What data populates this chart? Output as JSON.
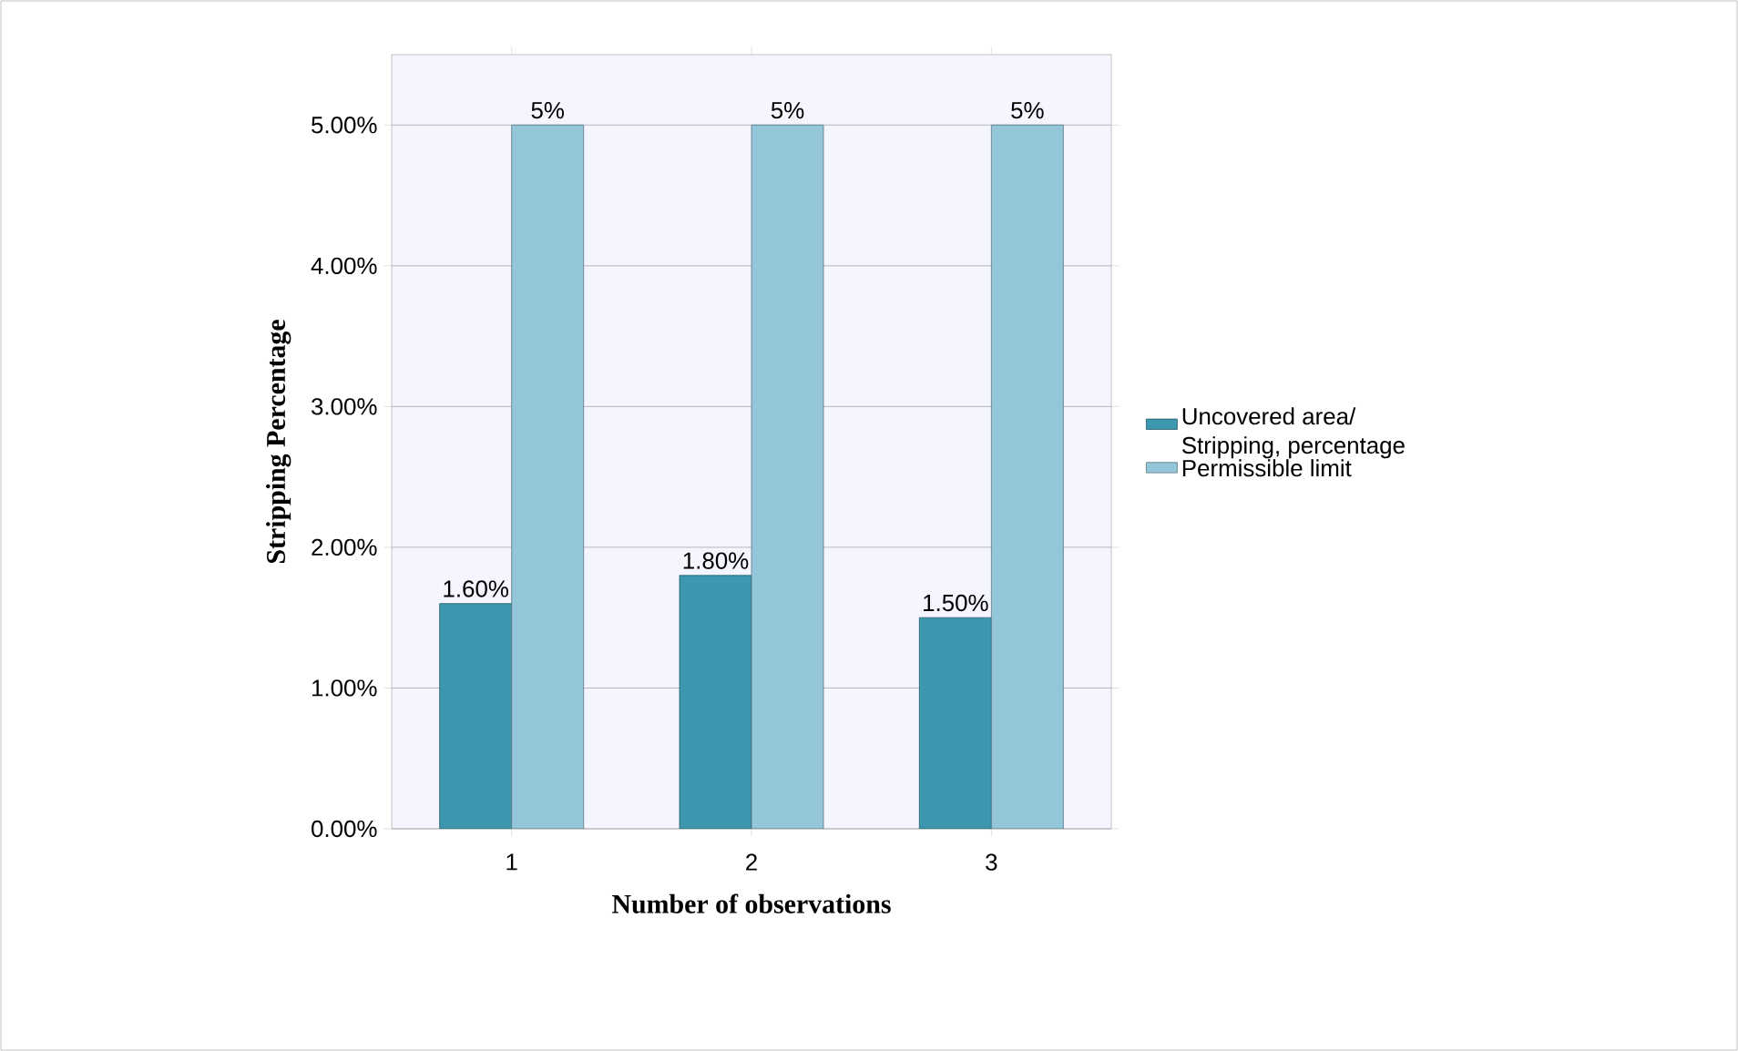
{
  "chart_data": {
    "type": "bar",
    "xlabel": "Number of observations",
    "ylabel": "Stripping Percentage",
    "categories": [
      "1",
      "2",
      "3"
    ],
    "series": [
      {
        "name": "Uncovered area/ Stripping, percentage",
        "color": "#3d97ae",
        "values": [
          1.6,
          1.8,
          1.5
        ],
        "value_labels": [
          "1.60%",
          "1.80%",
          "1.50%"
        ]
      },
      {
        "name": "Permissible limit",
        "color": "#93c6d8",
        "values": [
          5,
          5,
          5
        ],
        "value_labels": [
          "5%",
          "5%",
          "5%"
        ]
      }
    ],
    "ylim": [
      0,
      5.5
    ],
    "yticks": [
      {
        "value": 0,
        "label": "0.00%"
      },
      {
        "value": 1,
        "label": "1.00%"
      },
      {
        "value": 2,
        "label": "2.00%"
      },
      {
        "value": 3,
        "label": "3.00%"
      },
      {
        "value": 4,
        "label": "4.00%"
      },
      {
        "value": 5,
        "label": "5.00%"
      }
    ],
    "grid": "y",
    "legend": "right"
  }
}
